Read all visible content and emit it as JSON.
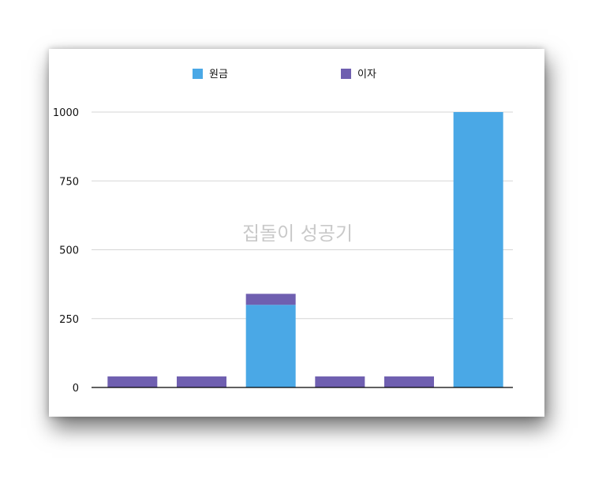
{
  "chart_data": {
    "type": "bar",
    "stacked": true,
    "categories": [
      "",
      "",
      "",
      "",
      "",
      ""
    ],
    "series": [
      {
        "name": "원금",
        "color": "#4aa8e6",
        "values": [
          0,
          0,
          300,
          0,
          0,
          1000
        ]
      },
      {
        "name": "이자",
        "color": "#6f5fb0",
        "values": [
          40,
          40,
          40,
          40,
          40,
          0
        ]
      }
    ],
    "yticks": [
      "0",
      "250",
      "500",
      "750",
      "1000"
    ],
    "ylim": [
      0,
      1000
    ],
    "grid": true,
    "legend": "top",
    "watermark": "집돌이 성공기"
  }
}
